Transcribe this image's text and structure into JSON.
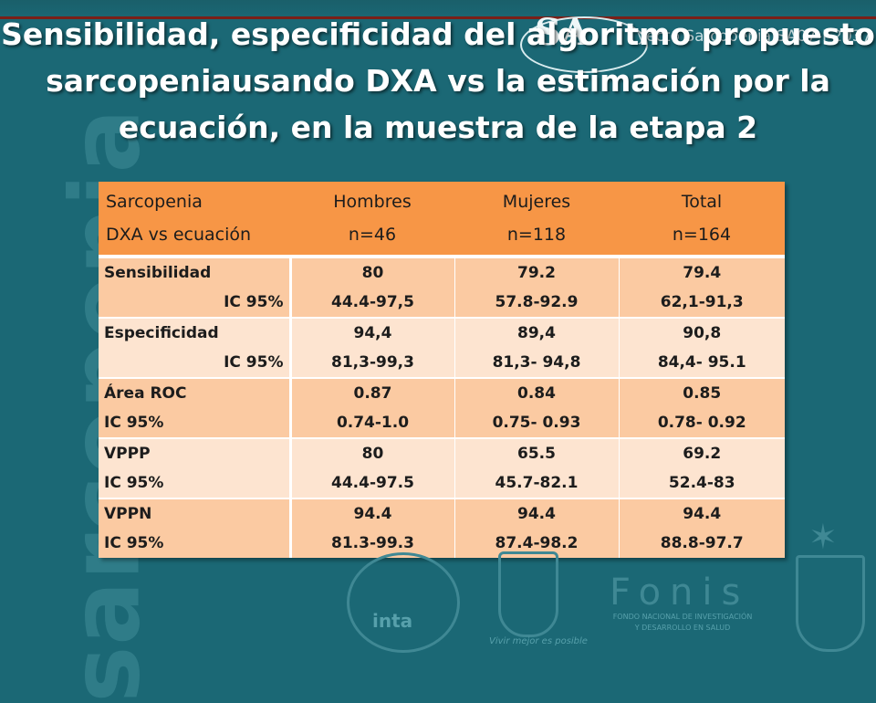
{
  "slide": {
    "title_lines": [
      "Sensibilidad, especificidad del algoritmo propuesto",
      "sarcopeniausando DXA vs la estimación por la",
      "ecuación, en la muestra de la etapa 2"
    ],
    "side_word": "sarcopenia",
    "project_ref": "yecto Sarcopenia SA07-I-2037",
    "logo_sa": "SA",
    "colors": {
      "background": "#1b6875",
      "header_orange": "#f79646",
      "row_dark": "#fbcaa2",
      "row_light": "#fde4d0",
      "accent_line": "#7a2018"
    }
  },
  "table": {
    "header_row1": [
      "Sarcopenia",
      "Hombres",
      "Mujeres",
      "Total"
    ],
    "header_row2": [
      "DXA vs ecuación",
      "n=46",
      "n=118",
      "n=164"
    ],
    "groups": [
      {
        "rows": [
          [
            "Sensibilidad",
            "80",
            "79.2",
            "79.4"
          ],
          [
            "IC 95%",
            "44.4-97,5",
            "57.8-92.9",
            "62,1-91,3"
          ]
        ]
      },
      {
        "rows": [
          [
            "Especificidad",
            "94,4",
            "89,4",
            "90,8"
          ],
          [
            "IC 95%",
            "81,3-99,3",
            "81,3- 94,8",
            "84,4- 95.1"
          ]
        ]
      },
      {
        "rows": [
          [
            "Área ROC",
            "0.87",
            "0.84",
            "0.85"
          ],
          [
            "IC 95%",
            "0.74-1.0",
            "0.75- 0.93",
            "0.78- 0.92"
          ]
        ]
      },
      {
        "rows": [
          [
            "VPPP",
            "80",
            "65.5",
            "69.2"
          ],
          [
            "IC 95%",
            "44.4-97.5",
            "45.7-82.1",
            "52.4-83"
          ]
        ]
      },
      {
        "rows": [
          [
            "VPPN",
            "94.4",
            "94.4",
            "94.4"
          ],
          [
            "IC 95%",
            "81.3-99.3",
            "87.4-98.2",
            "88.8-97.7"
          ]
        ]
      }
    ]
  },
  "logos": {
    "inta": "inta",
    "shield_caption": "Vivir mejor es posible",
    "fonis_name": "Fonis",
    "fonis_caption": "FONDO NACIONAL DE INVESTIGACIÓN Y DESARROLLO EN SALUD",
    "icons": [
      "inta-seal-icon",
      "university-shield-icon",
      "fonis-logo-icon",
      "university-crest-icon"
    ]
  }
}
